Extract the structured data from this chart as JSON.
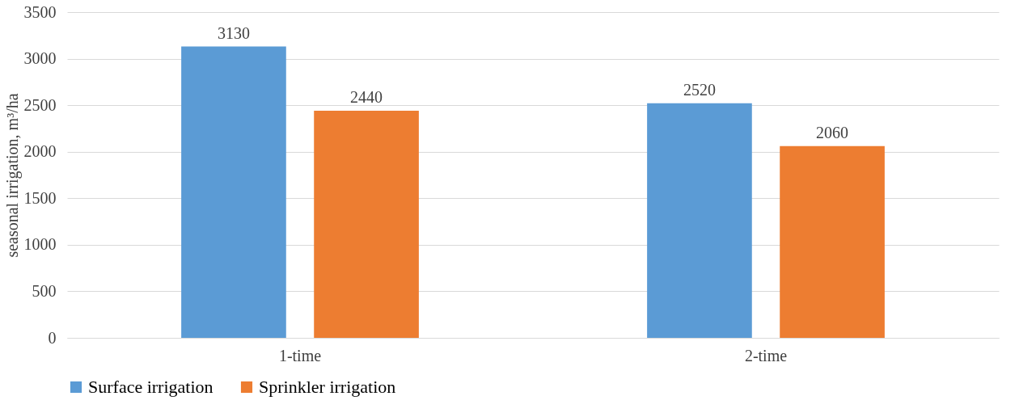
{
  "chart_data": {
    "type": "bar",
    "ylabel": "seasonal irrigation, m³/ha",
    "categories": [
      "1-time",
      "2-time"
    ],
    "series": [
      {
        "name": "Surface irrigation",
        "color": "#5b9bd5",
        "values": [
          3130,
          2520
        ]
      },
      {
        "name": "Sprinkler irrigation",
        "color": "#ed7d31",
        "values": [
          2440,
          2060
        ]
      }
    ],
    "ylim": [
      0,
      3500
    ],
    "yticks": [
      0,
      500,
      1000,
      1500,
      2000,
      2500,
      3000,
      3500
    ],
    "grid": "y",
    "legend": "bottom",
    "data_labels": true
  }
}
